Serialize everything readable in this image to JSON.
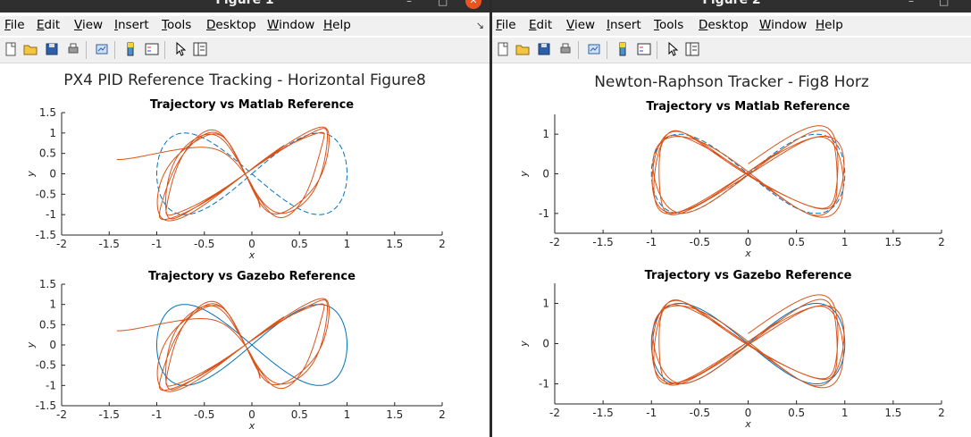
{
  "windows": [
    {
      "title": "Figure 1",
      "menus": [
        "File",
        "Edit",
        "View",
        "Insert",
        "Tools",
        "Desktop",
        "Window",
        "Help"
      ],
      "super_title": "PX4 PID Reference Tracking - Horizontal Figure8",
      "plots": [
        {
          "title": "Trajectory vs Matlab Reference",
          "xlabel": "x",
          "ylabel": "y",
          "xticks": [
            "-2",
            "-1.5",
            "-1",
            "-0.5",
            "0",
            "0.5",
            "1",
            "1.5",
            "2"
          ],
          "yticks": [
            "-1.5",
            "-1",
            "-0.5",
            "0",
            "0.5",
            "1",
            "1.5"
          ]
        },
        {
          "title": "Trajectory vs Gazebo Reference",
          "xlabel": "x",
          "ylabel": "y",
          "xticks": [
            "-2",
            "-1.5",
            "-1",
            "-0.5",
            "0",
            "0.5",
            "1",
            "1.5",
            "2"
          ],
          "yticks": [
            "-1.5",
            "-1",
            "-0.5",
            "0",
            "0.5",
            "1",
            "1.5"
          ]
        }
      ]
    },
    {
      "title": "Figure 2",
      "menus": [
        "File",
        "Edit",
        "View",
        "Insert",
        "Tools",
        "Desktop",
        "Window",
        "Help"
      ],
      "super_title": "Newton-Raphson Tracker - Fig8 Horz",
      "plots": [
        {
          "title": "Trajectory vs Matlab Reference",
          "xlabel": "x",
          "ylabel": "y",
          "xticks": [
            "-2",
            "-1.5",
            "-1",
            "-0.5",
            "0",
            "0.5",
            "1",
            "1.5",
            "2"
          ],
          "yticks": [
            "-1",
            "0",
            "1"
          ]
        },
        {
          "title": "Trajectory vs Gazebo Reference",
          "xlabel": "x",
          "ylabel": "y",
          "xticks": [
            "-2",
            "-1.5",
            "-1",
            "-0.5",
            "0",
            "0.5",
            "1",
            "1.5",
            "2"
          ],
          "yticks": [
            "-1",
            "0",
            "1"
          ]
        }
      ]
    }
  ],
  "colors": {
    "reference": "#0072bd",
    "trajectory": "#d95319"
  },
  "chart_data": [
    {
      "type": "line",
      "title": "Trajectory vs Matlab Reference",
      "xlabel": "x",
      "ylabel": "y",
      "xlim": [
        -2,
        2
      ],
      "ylim": [
        -1.5,
        1.5
      ],
      "series": [
        {
          "style": "dashed",
          "color": "#0072bd",
          "shape": "figure-eight x=sin(t), y=sin(2t), amplitude 1"
        },
        {
          "style": "solid",
          "color": "#d95319",
          "shape": "tracked figure-eight, several laps, x range -1.45..1.0, y range -1.15..1.05"
        }
      ]
    },
    {
      "type": "line",
      "title": "Trajectory vs Gazebo Reference",
      "xlabel": "x",
      "ylabel": "y",
      "xlim": [
        -2,
        2
      ],
      "ylim": [
        -1.5,
        1.5
      ],
      "series": [
        {
          "style": "solid",
          "color": "#0072bd",
          "shape": "figure-eight x=sin(t), y=sin(2t), amplitude 1"
        },
        {
          "style": "solid",
          "color": "#d95319",
          "shape": "tracked figure-eight, several laps, x range -1.45..1.0, y range -1.15..1.05"
        }
      ]
    },
    {
      "type": "line",
      "title": "Trajectory vs Matlab Reference",
      "xlabel": "x",
      "ylabel": "y",
      "xlim": [
        -2,
        2
      ],
      "ylim": [
        -1.5,
        1.5
      ],
      "series": [
        {
          "style": "dashed",
          "color": "#0072bd",
          "shape": "figure-eight x=sin(t), y=sin(2t), amplitude 1"
        },
        {
          "style": "solid",
          "color": "#d95319",
          "shape": "tracked figure-eight, several laps, x range -1.0..1.0, y range -1.1..1.3"
        }
      ]
    },
    {
      "type": "line",
      "title": "Trajectory vs Gazebo Reference",
      "xlabel": "x",
      "ylabel": "y",
      "xlim": [
        -2,
        2
      ],
      "ylim": [
        -1.5,
        1.5
      ],
      "series": [
        {
          "style": "solid",
          "color": "#0072bd",
          "shape": "figure-eight x=sin(t), y=sin(2t), amplitude 1"
        },
        {
          "style": "solid",
          "color": "#d95319",
          "shape": "tracked figure-eight, several laps, x range -1.0..1.0, y range -1.1..1.3"
        }
      ]
    }
  ]
}
